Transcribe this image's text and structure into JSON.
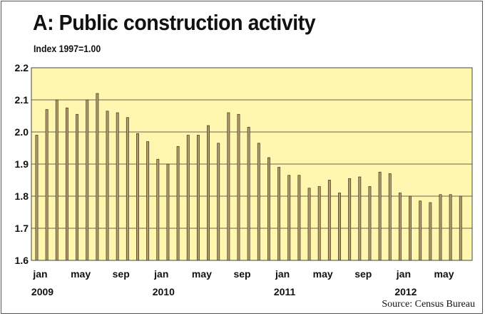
{
  "chart_data": {
    "type": "bar",
    "title": "A: Public construction activity",
    "subtitle": "Index 1997=1.00",
    "source": "Source: Census Bureau",
    "ylim": [
      1.6,
      2.2
    ],
    "yticks": [
      "1.6",
      "1.7",
      "1.8",
      "1.9",
      "2.0",
      "2.1",
      "2.2"
    ],
    "tick_labels": [
      "jan",
      "may",
      "sep",
      "jan",
      "may",
      "sep",
      "jan",
      "may",
      "sep",
      "jan",
      "may"
    ],
    "year_labels": [
      "2009",
      "2010",
      "2011",
      "2012"
    ],
    "grid": true,
    "colors": {
      "plot_bg": "#FFF7B0",
      "bar": "#B19B6A",
      "bar_edge": "#3d3420",
      "grid": "#333333"
    },
    "categories": [
      "Jan 2009",
      "Feb 2009",
      "Mar 2009",
      "Apr 2009",
      "May 2009",
      "Jun 2009",
      "Jul 2009",
      "Aug 2009",
      "Sep 2009",
      "Oct 2009",
      "Nov 2009",
      "Dec 2009",
      "Jan 2010",
      "Feb 2010",
      "Mar 2010",
      "Apr 2010",
      "May 2010",
      "Jun 2010",
      "Jul 2010",
      "Aug 2010",
      "Sep 2010",
      "Oct 2010",
      "Nov 2010",
      "Dec 2010",
      "Jan 2011",
      "Feb 2011",
      "Mar 2011",
      "Apr 2011",
      "May 2011",
      "Jun 2011",
      "Jul 2011",
      "Aug 2011",
      "Sep 2011",
      "Oct 2011",
      "Nov 2011",
      "Dec 2011",
      "Jan 2012",
      "Feb 2012",
      "Mar 2012",
      "Apr 2012",
      "May 2012",
      "Jun 2012",
      "Jul 2012"
    ],
    "values": [
      1.99,
      2.07,
      2.1,
      2.075,
      2.055,
      2.1,
      2.12,
      2.065,
      2.06,
      2.045,
      1.995,
      1.97,
      1.915,
      1.9,
      1.955,
      1.99,
      1.99,
      2.02,
      1.965,
      2.06,
      2.055,
      2.015,
      1.965,
      1.92,
      1.89,
      1.865,
      1.865,
      1.825,
      1.83,
      1.85,
      1.81,
      1.855,
      1.86,
      1.83,
      1.875,
      1.87,
      1.81,
      1.8,
      1.785,
      1.78,
      1.805,
      1.805,
      1.8
    ]
  }
}
